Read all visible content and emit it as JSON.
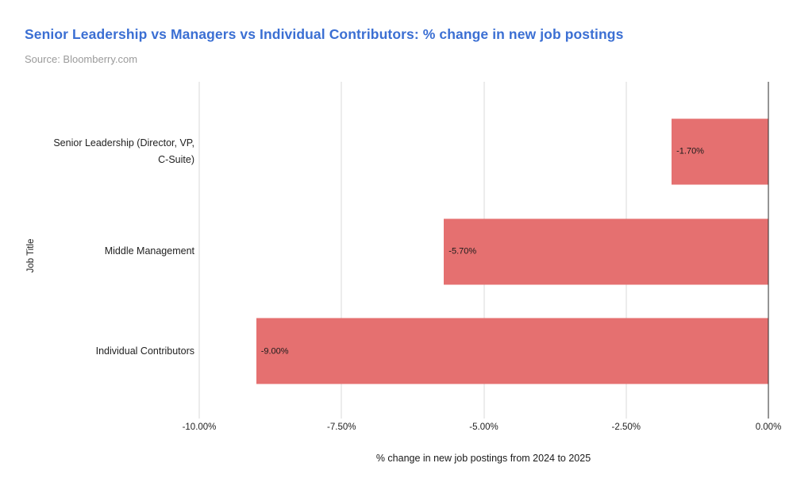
{
  "header": {
    "title": "Senior Leadership vs Managers vs Individual Contributors: % change in new job postings",
    "source": "Source: Bloomberry.com"
  },
  "colors": {
    "title": "#3b6fd3",
    "source": "#9b9b9b",
    "bar": "#e57070",
    "gridline": "#d9d9d9",
    "zero_line": "#2b2b2b"
  },
  "chart_data": {
    "type": "bar",
    "orientation": "horizontal",
    "title": "Senior Leadership vs Managers vs Individual Contributors: % change in new job postings",
    "subtitle": "Source: Bloomberry.com",
    "categories": [
      "Senior Leadership (Director, VP, C-Suite)",
      "Middle Management",
      "Individual Contributors"
    ],
    "values": [
      -1.7,
      -5.7,
      -9.0
    ],
    "value_labels": [
      "-1.70%",
      "-5.70%",
      "-9.00%"
    ],
    "xlabel": "% change in new job postings from 2024 to 2025",
    "ylabel": "Job Title",
    "xlim": [
      -10,
      0
    ],
    "xticks": [
      -10,
      -7.5,
      -5,
      -2.5,
      0
    ],
    "xtick_labels": [
      "-10.00%",
      "-7.50%",
      "-5.00%",
      "-2.50%",
      "0.00%"
    ],
    "grid": true,
    "legend": false,
    "bar_color": "#e57070"
  }
}
